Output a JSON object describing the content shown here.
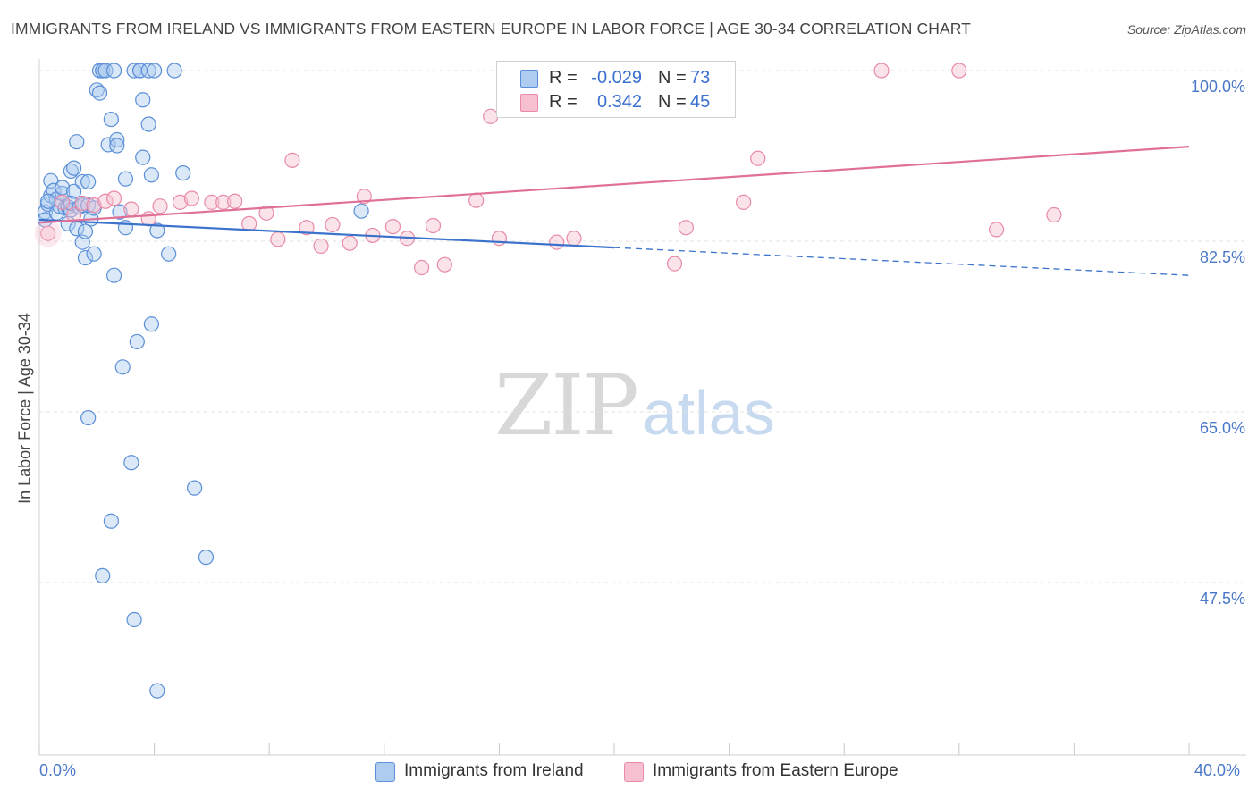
{
  "title": "IMMIGRANTS FROM IRELAND VS IMMIGRANTS FROM EASTERN EUROPE IN LABOR FORCE | AGE 30-34 CORRELATION CHART",
  "source": "Source: ZipAtlas.com",
  "watermark": {
    "zip": "ZIP",
    "atlas": "atlas"
  },
  "legend": {
    "rows": [
      {
        "r_label": "R =",
        "r_value": "-0.029",
        "n_label": "N =",
        "n_value": "73"
      },
      {
        "r_label": "R =",
        "r_value": "0.342",
        "n_label": "N =",
        "n_value": "45"
      }
    ]
  },
  "bottom_legend": {
    "ireland": "Immigrants from Ireland",
    "eastern_europe": "Immigrants from Eastern Europe"
  },
  "colors": {
    "ireland_fill": "#aecbf0",
    "ireland_stroke": "#5b8fd8",
    "ireland_line": "#3a72cc",
    "ee_fill": "#f7c0d0",
    "ee_stroke": "#e88aa8",
    "ee_line": "#e07098",
    "tick_text": "#4a78c8",
    "grid": "#e0e0e0"
  },
  "chart_data": {
    "type": "scatter",
    "title": "IMMIGRANTS FROM IRELAND VS IMMIGRANTS FROM EASTERN EUROPE IN LABOR FORCE | AGE 30-34 CORRELATION CHART",
    "xlabel": "",
    "ylabel": "In Labor Force | Age 30-34",
    "xlim": [
      0,
      40
    ],
    "ylim": [
      30,
      102
    ],
    "x_tick_labels": [
      "0.0%",
      "40.0%"
    ],
    "y_ticks": [
      100,
      82.5,
      65,
      47.5
    ],
    "y_tick_labels": [
      "100.0%",
      "82.5%",
      "65.0%",
      "47.5%"
    ],
    "grid": true,
    "series": [
      {
        "name": "Immigrants from Ireland",
        "R": -0.029,
        "N": 73,
        "trend": {
          "x0": 0,
          "y0": 84.7,
          "x1": 40,
          "y1": 79.0,
          "solid_until_x": 20
        },
        "points": [
          [
            0.2,
            85.5
          ],
          [
            0.2,
            84.7
          ],
          [
            0.3,
            86.3
          ],
          [
            0.4,
            87.2
          ],
          [
            0.4,
            88.7
          ],
          [
            0.5,
            87.7
          ],
          [
            0.6,
            86.8
          ],
          [
            0.6,
            85.4
          ],
          [
            0.7,
            86.1
          ],
          [
            0.8,
            87.4
          ],
          [
            0.8,
            88.0
          ],
          [
            0.9,
            85.9
          ],
          [
            1.0,
            86.0
          ],
          [
            1.0,
            84.3
          ],
          [
            1.1,
            89.7
          ],
          [
            1.1,
            85.7
          ],
          [
            1.2,
            87.6
          ],
          [
            1.1,
            86.4
          ],
          [
            1.2,
            90.0
          ],
          [
            1.3,
            83.8
          ],
          [
            1.3,
            92.7
          ],
          [
            1.4,
            86.0
          ],
          [
            1.5,
            86.2
          ],
          [
            1.5,
            82.4
          ],
          [
            1.5,
            88.6
          ],
          [
            1.6,
            80.8
          ],
          [
            1.6,
            83.5
          ],
          [
            1.7,
            86.2
          ],
          [
            1.7,
            88.6
          ],
          [
            1.8,
            84.8
          ],
          [
            1.9,
            81.2
          ],
          [
            1.9,
            85.9
          ],
          [
            2.0,
            98.0
          ],
          [
            2.1,
            97.7
          ],
          [
            2.1,
            100
          ],
          [
            2.2,
            100
          ],
          [
            2.2,
            100
          ],
          [
            2.3,
            100
          ],
          [
            2.4,
            92.4
          ],
          [
            2.5,
            95.0
          ],
          [
            2.6,
            79.0
          ],
          [
            2.6,
            100
          ],
          [
            2.7,
            92.9
          ],
          [
            2.7,
            92.3
          ],
          [
            2.8,
            85.5
          ],
          [
            2.9,
            69.6
          ],
          [
            3.0,
            88.9
          ],
          [
            3.0,
            83.9
          ],
          [
            3.2,
            59.8
          ],
          [
            3.3,
            100
          ],
          [
            3.3,
            43.7
          ],
          [
            3.4,
            72.2
          ],
          [
            3.5,
            100
          ],
          [
            3.5,
            100
          ],
          [
            3.6,
            91.1
          ],
          [
            3.6,
            97.0
          ],
          [
            3.8,
            100
          ],
          [
            3.8,
            94.5
          ],
          [
            3.9,
            74.0
          ],
          [
            3.9,
            89.3
          ],
          [
            4.0,
            100
          ],
          [
            4.1,
            36.4
          ],
          [
            4.1,
            83.6
          ],
          [
            4.5,
            81.2
          ],
          [
            4.7,
            100
          ],
          [
            5.0,
            89.5
          ],
          [
            5.4,
            57.2
          ],
          [
            5.8,
            50.1
          ],
          [
            11.2,
            85.6
          ],
          [
            1.7,
            64.4
          ],
          [
            2.5,
            53.8
          ],
          [
            2.2,
            48.2
          ],
          [
            0.3,
            86.6
          ]
        ]
      },
      {
        "name": "Immigrants from Eastern Europe",
        "R": 0.342,
        "N": 45,
        "trend": {
          "x0": 0,
          "y0": 84.4,
          "x1": 40,
          "y1": 92.2
        },
        "points": [
          [
            0.3,
            83.3
          ],
          [
            0.8,
            86.5
          ],
          [
            1.2,
            85.2
          ],
          [
            1.5,
            86.4
          ],
          [
            1.9,
            86.2
          ],
          [
            2.3,
            86.6
          ],
          [
            2.6,
            86.9
          ],
          [
            3.2,
            85.8
          ],
          [
            3.8,
            84.8
          ],
          [
            4.2,
            86.1
          ],
          [
            4.9,
            86.5
          ],
          [
            5.3,
            86.9
          ],
          [
            6.0,
            86.5
          ],
          [
            6.4,
            86.5
          ],
          [
            6.8,
            86.6
          ],
          [
            7.3,
            84.3
          ],
          [
            7.9,
            85.4
          ],
          [
            8.3,
            82.7
          ],
          [
            8.8,
            90.8
          ],
          [
            9.3,
            83.9
          ],
          [
            9.8,
            82.0
          ],
          [
            10.2,
            84.2
          ],
          [
            10.8,
            82.3
          ],
          [
            11.3,
            87.1
          ],
          [
            11.6,
            83.1
          ],
          [
            12.3,
            84.0
          ],
          [
            12.8,
            82.8
          ],
          [
            13.3,
            79.8
          ],
          [
            13.7,
            84.1
          ],
          [
            14.1,
            80.1
          ],
          [
            15.2,
            86.7
          ],
          [
            15.7,
            95.3
          ],
          [
            16.0,
            82.8
          ],
          [
            18.0,
            82.4
          ],
          [
            18.3,
            100
          ],
          [
            18.6,
            82.8
          ],
          [
            20.8,
            100
          ],
          [
            22.1,
            80.2
          ],
          [
            22.5,
            83.9
          ],
          [
            24.5,
            86.5
          ],
          [
            25.0,
            91.0
          ],
          [
            29.3,
            100
          ],
          [
            32.0,
            100
          ],
          [
            33.3,
            83.7
          ],
          [
            35.3,
            85.2
          ]
        ]
      }
    ]
  }
}
